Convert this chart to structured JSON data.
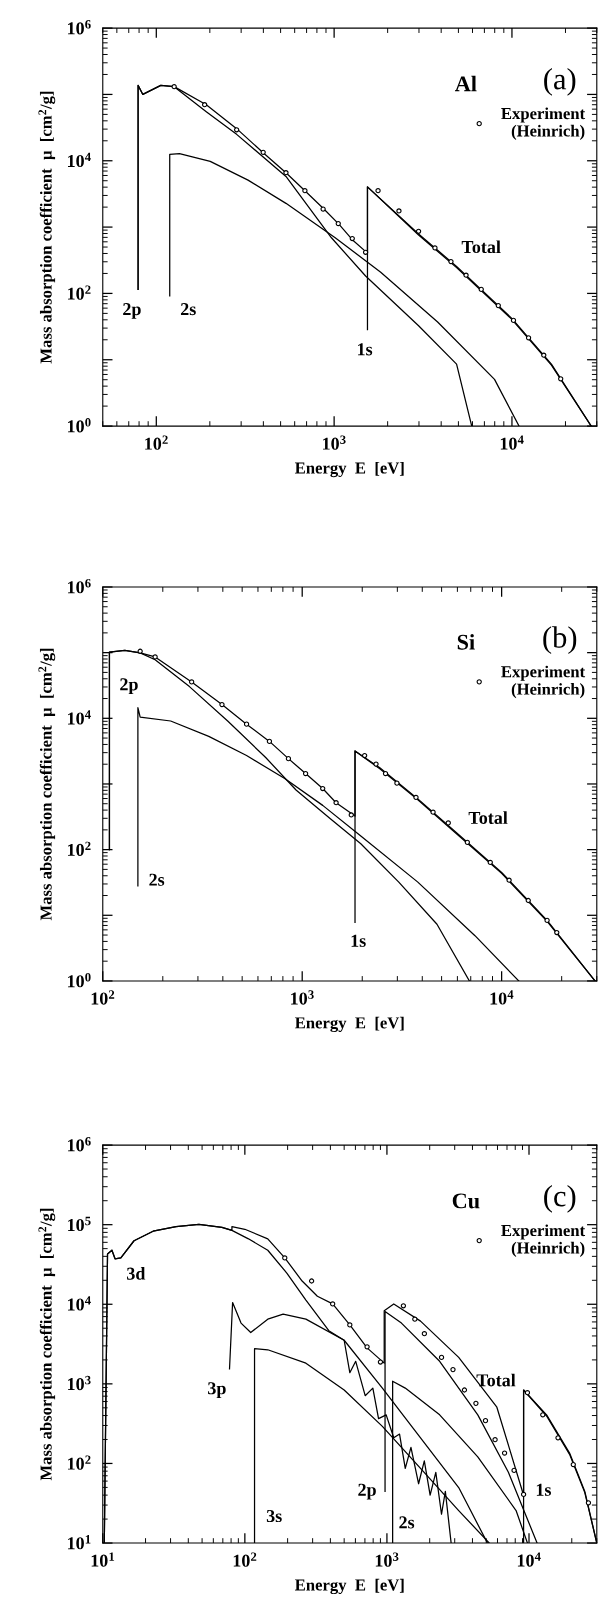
{
  "chart_data": [
    {
      "type": "line",
      "title": "(a)",
      "subtitle": "Al",
      "xlabel": "Energy  E  [eV]",
      "ylabel": "Mass absorption coefficient  μ  [cm$^{2}$/g]",
      "log": "xy",
      "legend": "top right",
      "xlim": [
        50,
        30000
      ],
      "ylim": [
        1,
        1000000
      ],
      "xticks": [
        {
          "value": 100,
          "label": "10$^{2}$"
        },
        {
          "value": 1000,
          "label": "10$^{3}$"
        },
        {
          "value": 10000,
          "label": "10$^{4}$"
        }
      ],
      "yticks": [
        {
          "value": 1,
          "label": "10$^{0}$"
        },
        {
          "value": 10,
          "label": null
        },
        {
          "value": 100,
          "label": "10$^{2}$"
        },
        {
          "value": 1000,
          "label": null
        },
        {
          "value": 10000,
          "label": "10$^{4}$"
        },
        {
          "value": 100000,
          "label": null
        },
        {
          "value": 1000000,
          "label": "10$^{6}$"
        }
      ],
      "series": [
        {
          "type": "line",
          "color": "#000000",
          "x": [
            79,
            79,
            84,
            106,
            126,
            191,
            283,
            399,
            536,
            685,
            876,
            1066,
            1265,
            1540,
            1540,
            2985,
            4882,
            9950,
            16670,
            27900
          ],
          "values": [
            115,
            137000,
            100000,
            137000,
            131000,
            70000,
            30500,
            13200,
            6600,
            3540,
            1870,
            1100,
            646,
            405,
            4040,
            788,
            255,
            42.4,
            8.6,
            1
          ]
        },
        {
          "type": "line",
          "color": "#000000",
          "x": [
            79,
            79,
            84,
            106,
            126,
            191,
            283,
            536,
            966,
            1503,
            2985,
            4882,
            5940
          ],
          "values": [
            115,
            137000,
            100000,
            137000,
            131000,
            55000,
            25000,
            5800,
            690,
            183,
            32.5,
            8.6,
            1
          ]
        },
        {
          "type": "line",
          "color": "#000000",
          "x": [
            119,
            119,
            135,
            201,
            328,
            536,
            1014,
            1828,
            3820,
            7980,
            10960
          ],
          "values": [
            92,
            12500,
            12800,
            9800,
            5100,
            2280,
            690,
            209,
            37,
            5.06,
            1
          ]
        },
        {
          "type": "line",
          "color": "#000000",
          "x": [
            1540,
            1540,
            2985,
            4882,
            9950,
            16670,
            27900
          ],
          "values": [
            28.5,
            4040,
            760,
            245,
            41,
            8.3,
            1
          ]
        },
        {
          "type": "scatter",
          "marker": "circle",
          "name": "Experiment\n(Heinrich)",
          "color": "#000000",
          "x": [
            126,
            187,
            283,
            399,
            536,
            685,
            867,
            1055,
            1265,
            1503,
            1766,
            2315,
            2985,
            3690,
            4540,
            5520,
            6720,
            8380,
            10200,
            12400,
            15100,
            18800
          ],
          "values": [
            131000,
            70000,
            29300,
            13400,
            6600,
            3540,
            1870,
            1130,
            672,
            417,
            3540,
            1750,
            865,
            485,
            302,
            188,
            115,
            65.5,
            39.2,
            21.4,
            11.7,
            5.16
          ]
        }
      ],
      "annotations": [
        "2p",
        "2s",
        "1s",
        "Total"
      ]
    },
    {
      "type": "line",
      "title": "(b)",
      "subtitle": "Si",
      "xlabel": "Energy  E  [eV]",
      "ylabel": "Mass absorption coefficient  μ  [cm$^{2}$/g]",
      "log": "xy",
      "legend": "top right",
      "xlim": [
        100,
        30000
      ],
      "ylim": [
        1,
        1000000
      ],
      "xticks": [
        {
          "value": 100,
          "label": "10$^{2}$"
        },
        {
          "value": 1000,
          "label": "10$^{3}$"
        },
        {
          "value": 10000,
          "label": "10$^{4}$"
        }
      ],
      "yticks": [
        {
          "value": 1,
          "label": "10$^{0}$"
        },
        {
          "value": 10,
          "label": null
        },
        {
          "value": 100,
          "label": "10$^{2}$"
        },
        {
          "value": 1000,
          "label": null
        },
        {
          "value": 10000,
          "label": "10$^{4}$"
        },
        {
          "value": 100000,
          "label": null
        },
        {
          "value": 1000000,
          "label": "10$^{6}$"
        }
      ],
      "series": [
        {
          "type": "line",
          "color": "#000000",
          "x": [
            108,
            108,
            129,
            154,
            183,
            279,
            396,
            526,
            685,
            853,
            1040,
            1267,
            1479,
            1840,
            1840,
            2450,
            3800,
            5900,
            10000,
            16900,
            29400
          ],
          "values": [
            100,
            102000,
            108000,
            99000,
            86000,
            35800,
            16200,
            8150,
            4450,
            2430,
            1440,
            852,
            518,
            324,
            3180,
            1760,
            593,
            184,
            44.9,
            8.36,
            1
          ]
        },
        {
          "type": "line",
          "color": "#000000",
          "x": [
            108,
            108,
            129,
            154,
            183,
            272,
            423,
            656,
            931,
            1384,
            1967,
            3050,
            4740,
            6890
          ],
          "values": [
            100,
            102000,
            108000,
            99000,
            78000,
            30400,
            9080,
            2530,
            808,
            295,
            123,
            32,
            7.3,
            1
          ]
        },
        {
          "type": "line",
          "color": "#000000",
          "x": [
            150,
            150,
            154,
            219,
            340,
            526,
            817,
            1267,
            1967,
            3800,
            7350,
            12190
          ],
          "values": [
            28,
            14500,
            10400,
            9100,
            5300,
            2710,
            1210,
            472,
            161,
            32,
            4.89,
            1
          ]
        },
        {
          "type": "line",
          "color": "#000000",
          "x": [
            1840,
            1840,
            2450,
            3800,
            5900,
            10000,
            16900,
            29400
          ],
          "values": [
            7.8,
            3180,
            1700,
            575,
            178,
            43.5,
            8.1,
            1
          ]
        },
        {
          "type": "scatter",
          "marker": "circle",
          "name": "Experiment\n(Heinrich)",
          "color": "#000000",
          "x": [
            154,
            183,
            279,
            396,
            526,
            685,
            853,
            1040,
            1267,
            1479,
            1762,
            2056,
            2345,
            2617,
            2985,
            3720,
            4530,
            5400,
            6730,
            8770,
            10900,
            13600,
            16900,
            18900
          ],
          "values": [
            105000,
            86000,
            35800,
            16200,
            8150,
            4450,
            2430,
            1440,
            852,
            518,
            337,
            2710,
            2010,
            1440,
            1030,
            624,
            372,
            255,
            129,
            63.8,
            34.2,
            16.8,
            8.36,
            5.46
          ]
        }
      ],
      "annotations": [
        "2p",
        "2s",
        "1s",
        "Total"
      ]
    },
    {
      "type": "line",
      "title": "(c)",
      "subtitle": "Cu",
      "xlabel": "Energy  E  [eV]",
      "ylabel": "Mass absorption coefficient  μ  [cm$^{2}$/g]",
      "log": "xy",
      "legend": "top right",
      "xlim": [
        10,
        30000
      ],
      "ylim": [
        10,
        1000000
      ],
      "xticks": [
        {
          "value": 10,
          "label": "10$^{1}$"
        },
        {
          "value": 100,
          "label": "10$^{2}$"
        },
        {
          "value": 1000,
          "label": "10$^{3}$"
        },
        {
          "value": 10000,
          "label": "10$^{4}$"
        }
      ],
      "yticks": [
        {
          "value": 10,
          "label": "10$^{1}$"
        },
        {
          "value": 100,
          "label": "10$^{2}$"
        },
        {
          "value": 1000,
          "label": "10$^{3}$"
        },
        {
          "value": 10000,
          "label": "10$^{4}$"
        },
        {
          "value": 100000,
          "label": "10$^{5}$"
        },
        {
          "value": 1000000,
          "label": "10$^{6}$"
        }
      ],
      "series": [
        {
          "type": "line",
          "color": "#000000",
          "x": [
            10.25,
            10.8,
            11.6,
            12.2,
            13.4,
            16.6,
            22.6,
            32.8,
            47.5,
            69,
            81.1,
            81.1,
            100,
            145,
            191,
            253,
            324,
            415,
            548,
            725,
            957,
            957,
            1117,
            1724,
            3200,
            5940,
            9160,
            9160,
            13300,
            19300,
            24700,
            30000
          ],
          "values": [
            10,
            42700,
            47700,
            37300,
            38200,
            62800,
            82800,
            94600,
            101000,
            92500,
            84700,
            94600,
            87500,
            66400,
            38200,
            19600,
            12600,
            10100,
            5500,
            2830,
            1820,
            8280,
            10100,
            6140,
            2150,
            509,
            39.9,
            837,
            408,
            135,
            44.6,
            10
          ]
        },
        {
          "type": "line",
          "color": "#000000",
          "x": [
            10.25,
            10.8,
            11.6,
            12.2,
            13.4,
            16.6,
            22.6,
            32.8,
            47.5,
            69,
            81.1,
            106,
            145,
            198,
            269,
            390,
            500,
            548,
            603,
            703,
            796,
            873,
            988,
            1117,
            1227,
            1346,
            1476,
            1670,
            1833,
            2014,
            2208,
            2422,
            2577,
            2831
          ],
          "values": [
            10,
            42700,
            47700,
            37300,
            38200,
            62800,
            82800,
            94600,
            101000,
            92500,
            84700,
            66400,
            47700,
            24500,
            11300,
            4660,
            3530,
            1380,
            1920,
            710,
            885,
            366,
            408,
            210,
            234,
            86.7,
            159,
            55.6,
            108,
            39.9,
            77.4,
            23,
            44.6,
            10
          ]
        },
        {
          "type": "line",
          "color": "#000000",
          "x": [
            78,
            82,
            94,
            110,
            145,
            186,
            269,
            500,
            929,
            1724,
            3200,
            5100
          ],
          "values": [
            1540,
            10500,
            5800,
            4410,
            6500,
            7500,
            6500,
            3530,
            885,
            210,
            49.8,
            10
          ]
        },
        {
          "type": "line",
          "color": "#000000",
          "x": [
            117,
            117,
            145,
            269,
            500,
            929,
            1724,
            3200,
            5250
          ],
          "values": [
            10,
            2770,
            2680,
            1820,
            837,
            292,
            86.7,
            25.6,
            10
          ]
        },
        {
          "type": "line",
          "color": "#000000",
          "x": [
            970,
            970,
            1265,
            2350,
            4360,
            7160,
            11400
          ],
          "values": [
            44.6,
            8100,
            5800,
            1920,
            408,
            77.4,
            10
          ]
        },
        {
          "type": "line",
          "color": "#000000",
          "x": [
            1097,
            1097,
            1346,
            2350,
            4360,
            8110,
            9750
          ],
          "values": [
            10,
            1080,
            885,
            408,
            121,
            25.6,
            10
          ]
        },
        {
          "type": "line",
          "color": "#000000",
          "x": [
            9160,
            9160,
            13300,
            19300,
            24700,
            30000
          ],
          "values": [
            10,
            837,
            395,
            130,
            43,
            10
          ]
        },
        {
          "type": "scatter",
          "marker": "circle",
          "name": "Experiment\n(Heinrich)",
          "color": "#000000",
          "x": [
            191,
            295,
            415,
            548,
            725,
            900,
            1306,
            1572,
            1835,
            2423,
            2917,
            3513,
            4230,
            4940,
            5770,
            6730,
            7850,
            9160,
            9750,
            12500,
            16000,
            20500,
            26200
          ],
          "values": [
            38200,
            19600,
            10100,
            5500,
            2920,
            1880,
            9570,
            6500,
            4270,
            2150,
            1510,
            837,
            569,
            345,
            199,
            135,
            81.8,
            40.8,
            775,
            408,
            210,
            96.8,
            32
          ]
        }
      ],
      "annotations": [
        "3d",
        "3p",
        "3s",
        "2p",
        "2s",
        "1s",
        "Total"
      ]
    }
  ]
}
